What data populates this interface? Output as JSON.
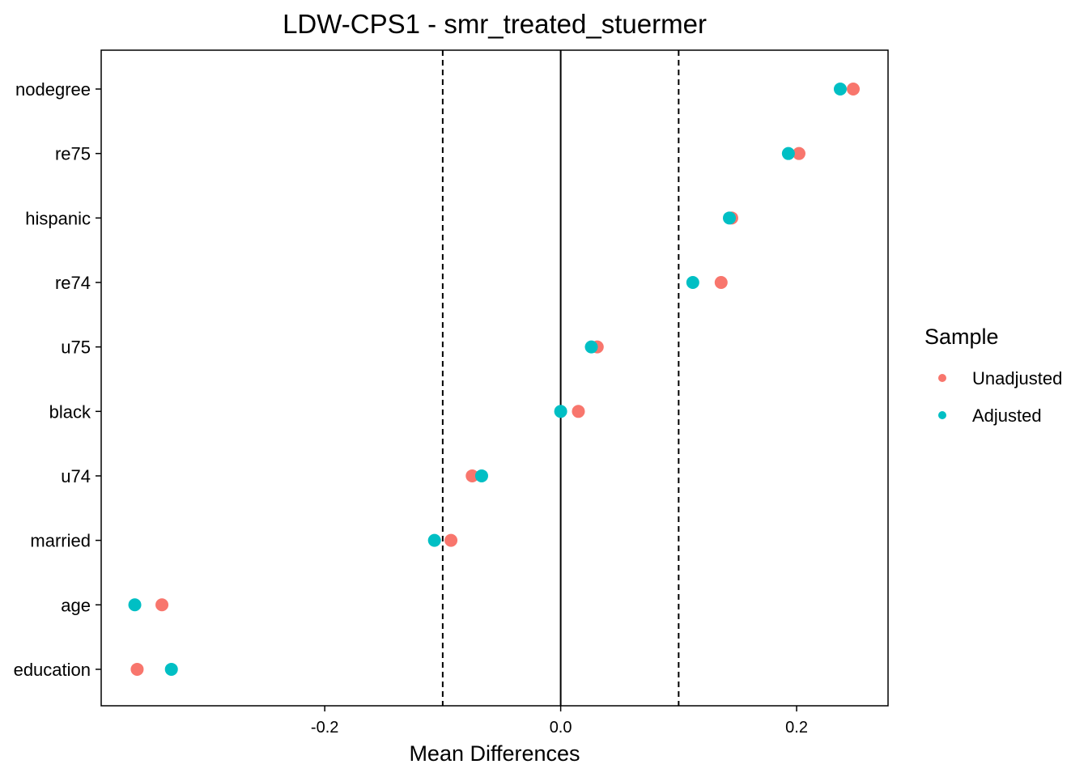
{
  "chart_data": {
    "type": "scatter",
    "title": "LDW-CPS1 - smr_treated_stuermer",
    "xlabel": "Mean Differences",
    "ylabel": "",
    "xlim": [
      -0.3895,
      0.2775
    ],
    "x_ticks": [
      {
        "value": -0.2,
        "label": "-0.2"
      },
      {
        "value": 0,
        "label": "0.0"
      },
      {
        "value": 0.2,
        "label": "0.2"
      }
    ],
    "reference_line": 0,
    "threshold_lines": [
      -0.1,
      0.1
    ],
    "grid": false,
    "categories": [
      "nodegree",
      "re75",
      "hispanic",
      "re74",
      "u75",
      "black",
      "u74",
      "married",
      "age",
      "education"
    ],
    "series": [
      {
        "name": "Unadjusted",
        "color": "#F8766D",
        "values": [
          0.248,
          0.202,
          0.145,
          0.136,
          0.031,
          0.015,
          -0.075,
          -0.093,
          -0.338,
          -0.359
        ]
      },
      {
        "name": "Adjusted",
        "color": "#00BFC4",
        "values": [
          0.237,
          0.193,
          0.143,
          0.112,
          0.026,
          0.0,
          -0.067,
          -0.107,
          -0.361,
          -0.33
        ]
      }
    ],
    "legend": {
      "title": "Sample",
      "position": "right"
    }
  }
}
